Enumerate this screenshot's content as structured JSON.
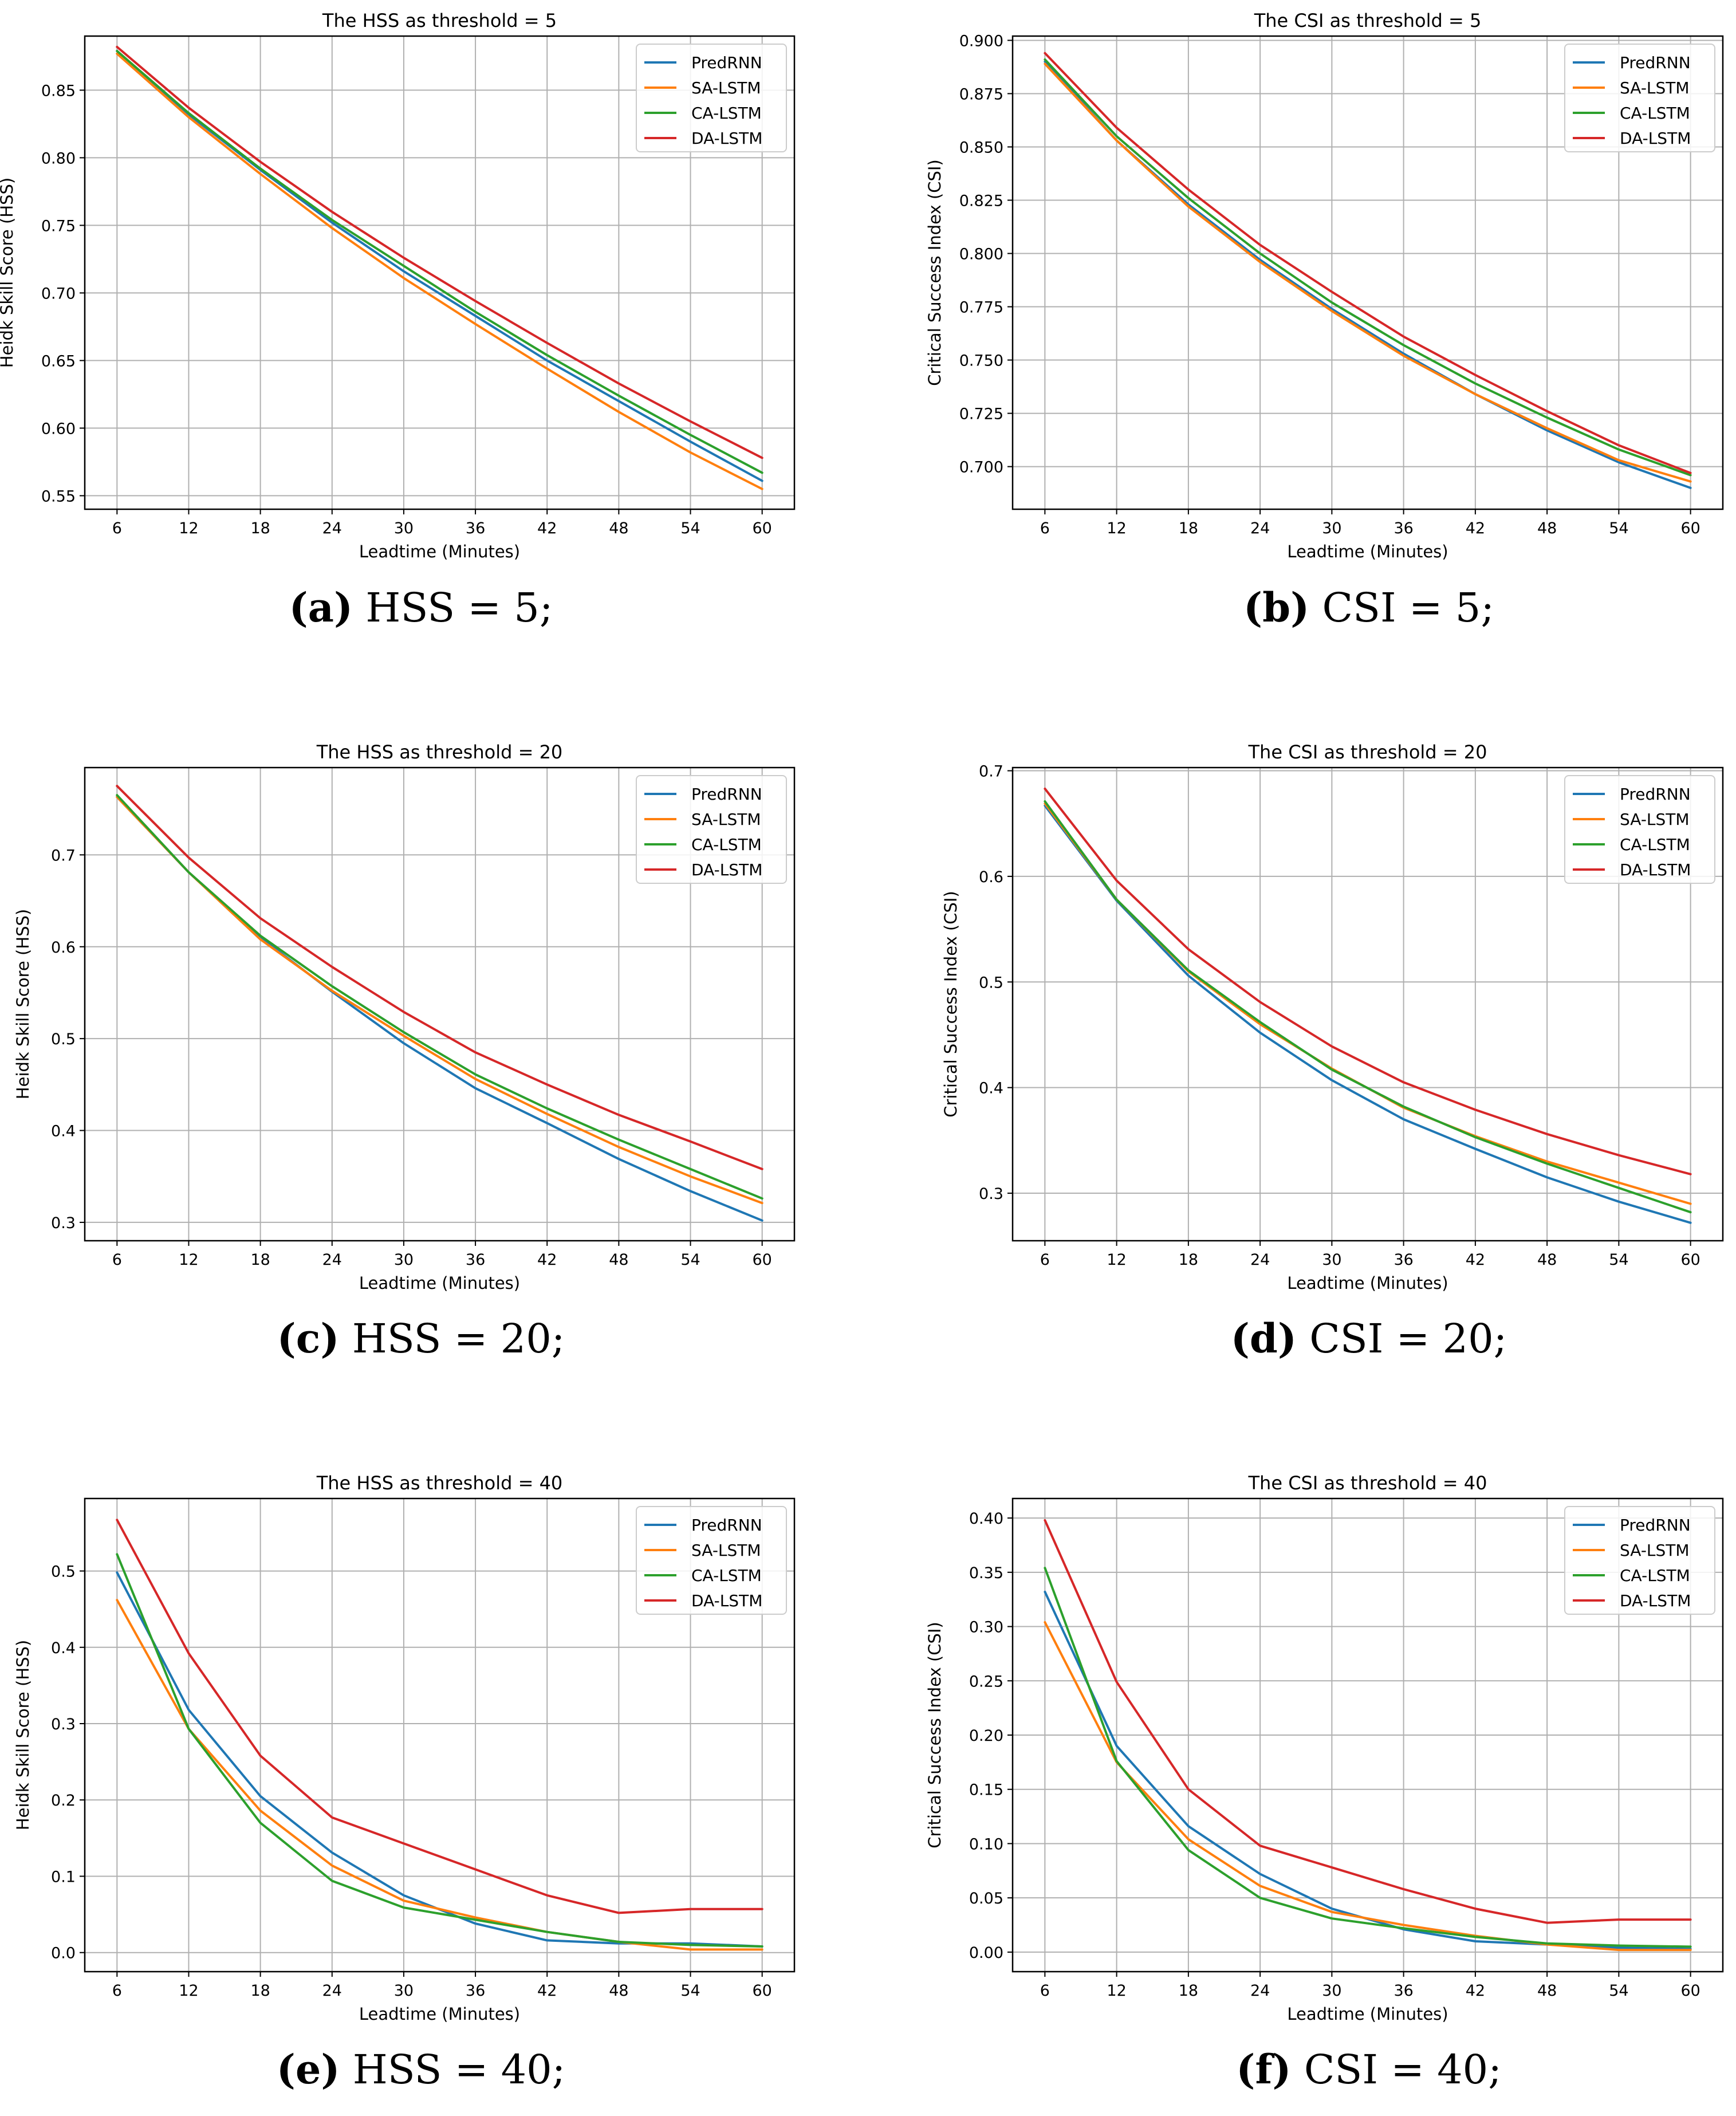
{
  "figure": {
    "series_names": [
      "PredRNN",
      "SA-LSTM",
      "CA-LSTM",
      "DA-LSTM"
    ],
    "series_colors": [
      "#1f77b4",
      "#ff7f0e",
      "#2ca02c",
      "#d62728"
    ]
  },
  "chart_data": [
    {
      "id": "a",
      "type": "line",
      "title": "The HSS as threshold = 5",
      "xlabel": "Leadtime (Minutes)",
      "ylabel": "Heidk Skill Score (HSS)",
      "x": [
        6,
        12,
        18,
        24,
        30,
        36,
        42,
        48,
        54,
        60
      ],
      "xticks": [
        "6",
        "12",
        "18",
        "24",
        "30",
        "36",
        "42",
        "48",
        "54",
        "60"
      ],
      "ylim": [
        0.54,
        0.89
      ],
      "yticks": [
        0.55,
        0.6,
        0.65,
        0.7,
        0.75,
        0.8,
        0.85
      ],
      "ytick_labels": [
        "0.55",
        "0.60",
        "0.65",
        "0.70",
        "0.75",
        "0.80",
        "0.85"
      ],
      "grid": true,
      "legend": "top-right",
      "caption_letter": "(a)",
      "caption_text": " HSS = 5;",
      "series": [
        {
          "name": "PredRNN",
          "values": [
            0.879,
            0.832,
            0.791,
            0.752,
            0.716,
            0.683,
            0.65,
            0.62,
            0.59,
            0.561
          ]
        },
        {
          "name": "SA-LSTM",
          "values": [
            0.877,
            0.83,
            0.788,
            0.748,
            0.711,
            0.677,
            0.644,
            0.612,
            0.582,
            0.555
          ]
        },
        {
          "name": "CA-LSTM",
          "values": [
            0.879,
            0.833,
            0.792,
            0.754,
            0.72,
            0.686,
            0.654,
            0.624,
            0.595,
            0.567
          ]
        },
        {
          "name": "DA-LSTM",
          "values": [
            0.882,
            0.837,
            0.797,
            0.76,
            0.726,
            0.694,
            0.663,
            0.633,
            0.605,
            0.578
          ]
        }
      ]
    },
    {
      "id": "b",
      "type": "line",
      "title": "The CSI as threshold = 5",
      "xlabel": "Leadtime (Minutes)",
      "ylabel": "Critical Success Index (CSI)",
      "x": [
        6,
        12,
        18,
        24,
        30,
        36,
        42,
        48,
        54,
        60
      ],
      "xticks": [
        "6",
        "12",
        "18",
        "24",
        "30",
        "36",
        "42",
        "48",
        "54",
        "60"
      ],
      "ylim": [
        0.68,
        0.902
      ],
      "yticks": [
        0.7,
        0.725,
        0.75,
        0.775,
        0.8,
        0.825,
        0.85,
        0.875,
        0.9
      ],
      "ytick_labels": [
        "0.700",
        "0.725",
        "0.750",
        "0.775",
        "0.800",
        "0.825",
        "0.850",
        "0.875",
        "0.900"
      ],
      "grid": true,
      "legend": "top-right",
      "caption_letter": "(b)",
      "caption_text": " CSI = 5;",
      "series": [
        {
          "name": "PredRNN",
          "values": [
            0.89,
            0.853,
            0.823,
            0.797,
            0.774,
            0.753,
            0.734,
            0.717,
            0.702,
            0.69
          ]
        },
        {
          "name": "SA-LSTM",
          "values": [
            0.889,
            0.853,
            0.822,
            0.796,
            0.773,
            0.752,
            0.734,
            0.718,
            0.703,
            0.693
          ]
        },
        {
          "name": "CA-LSTM",
          "values": [
            0.891,
            0.855,
            0.826,
            0.8,
            0.777,
            0.757,
            0.739,
            0.723,
            0.708,
            0.696
          ]
        },
        {
          "name": "DA-LSTM",
          "values": [
            0.894,
            0.859,
            0.83,
            0.804,
            0.782,
            0.761,
            0.743,
            0.726,
            0.71,
            0.697
          ]
        }
      ]
    },
    {
      "id": "c",
      "type": "line",
      "title": "The HSS as threshold = 20",
      "xlabel": "Leadtime (Minutes)",
      "ylabel": "Heidk Skill Score (HSS)",
      "x": [
        6,
        12,
        18,
        24,
        30,
        36,
        42,
        48,
        54,
        60
      ],
      "xticks": [
        "6",
        "12",
        "18",
        "24",
        "30",
        "36",
        "42",
        "48",
        "54",
        "60"
      ],
      "ylim": [
        0.28,
        0.795
      ],
      "yticks": [
        0.3,
        0.4,
        0.5,
        0.6,
        0.7
      ],
      "ytick_labels": [
        "0.3",
        "0.4",
        "0.5",
        "0.6",
        "0.7"
      ],
      "grid": true,
      "legend": "top-right",
      "caption_letter": "(c)",
      "caption_text": " HSS = 20;",
      "series": [
        {
          "name": "PredRNN",
          "values": [
            0.763,
            0.681,
            0.61,
            0.551,
            0.495,
            0.446,
            0.408,
            0.369,
            0.334,
            0.302
          ]
        },
        {
          "name": "SA-LSTM",
          "values": [
            0.763,
            0.681,
            0.608,
            0.552,
            0.503,
            0.456,
            0.418,
            0.382,
            0.35,
            0.321
          ]
        },
        {
          "name": "CA-LSTM",
          "values": [
            0.765,
            0.681,
            0.612,
            0.557,
            0.507,
            0.461,
            0.424,
            0.39,
            0.358,
            0.326
          ]
        },
        {
          "name": "DA-LSTM",
          "values": [
            0.775,
            0.697,
            0.631,
            0.578,
            0.529,
            0.485,
            0.45,
            0.417,
            0.388,
            0.358
          ]
        }
      ]
    },
    {
      "id": "d",
      "type": "line",
      "title": "The CSI as threshold = 20",
      "xlabel": "Leadtime (Minutes)",
      "ylabel": "Critical Success Index (CSI)",
      "x": [
        6,
        12,
        18,
        24,
        30,
        36,
        42,
        48,
        54,
        60
      ],
      "xticks": [
        "6",
        "12",
        "18",
        "24",
        "30",
        "36",
        "42",
        "48",
        "54",
        "60"
      ],
      "ylim": [
        0.255,
        0.703
      ],
      "yticks": [
        0.3,
        0.4,
        0.5,
        0.6,
        0.7
      ],
      "ytick_labels": [
        "0.3",
        "0.4",
        "0.5",
        "0.6",
        "0.7"
      ],
      "grid": true,
      "legend": "top-right",
      "caption_letter": "(d)",
      "caption_text": " CSI = 20;",
      "series": [
        {
          "name": "PredRNN",
          "values": [
            0.667,
            0.577,
            0.506,
            0.452,
            0.407,
            0.37,
            0.342,
            0.315,
            0.292,
            0.272
          ]
        },
        {
          "name": "SA-LSTM",
          "values": [
            0.669,
            0.578,
            0.51,
            0.46,
            0.418,
            0.381,
            0.354,
            0.33,
            0.31,
            0.29
          ]
        },
        {
          "name": "CA-LSTM",
          "values": [
            0.671,
            0.578,
            0.511,
            0.462,
            0.417,
            0.382,
            0.353,
            0.328,
            0.305,
            0.282
          ]
        },
        {
          "name": "DA-LSTM",
          "values": [
            0.683,
            0.596,
            0.531,
            0.481,
            0.439,
            0.405,
            0.379,
            0.356,
            0.336,
            0.318
          ]
        }
      ]
    },
    {
      "id": "e",
      "type": "line",
      "title": "The HSS as threshold = 40",
      "xlabel": "Leadtime (Minutes)",
      "ylabel": "Heidk Skill Score (HSS)",
      "x": [
        6,
        12,
        18,
        24,
        30,
        36,
        42,
        48,
        54,
        60
      ],
      "xticks": [
        "6",
        "12",
        "18",
        "24",
        "30",
        "36",
        "42",
        "48",
        "54",
        "60"
      ],
      "ylim": [
        -0.025,
        0.595
      ],
      "yticks": [
        0.0,
        0.1,
        0.2,
        0.3,
        0.4,
        0.5
      ],
      "ytick_labels": [
        "0.0",
        "0.1",
        "0.2",
        "0.3",
        "0.4",
        "0.5"
      ],
      "grid": true,
      "legend": "top-right",
      "caption_letter": "(e)",
      "caption_text": " HSS = 40;",
      "series": [
        {
          "name": "PredRNN",
          "values": [
            0.498,
            0.318,
            0.205,
            0.131,
            0.075,
            0.038,
            0.016,
            0.012,
            0.012,
            0.008
          ]
        },
        {
          "name": "SA-LSTM",
          "values": [
            0.462,
            0.293,
            0.186,
            0.114,
            0.068,
            0.046,
            0.027,
            0.014,
            0.004,
            0.004
          ]
        },
        {
          "name": "CA-LSTM",
          "values": [
            0.522,
            0.293,
            0.17,
            0.094,
            0.059,
            0.043,
            0.027,
            0.014,
            0.01,
            0.008
          ]
        },
        {
          "name": "DA-LSTM",
          "values": [
            0.567,
            0.392,
            0.258,
            0.177,
            0.143,
            0.109,
            0.075,
            0.052,
            0.057,
            0.057
          ]
        }
      ]
    },
    {
      "id": "f",
      "type": "line",
      "title": "The CSI as threshold = 40",
      "xlabel": "Leadtime (Minutes)",
      "ylabel": "Critical Success Index (CSI)",
      "x": [
        6,
        12,
        18,
        24,
        30,
        36,
        42,
        48,
        54,
        60
      ],
      "xticks": [
        "6",
        "12",
        "18",
        "24",
        "30",
        "36",
        "42",
        "48",
        "54",
        "60"
      ],
      "ylim": [
        -0.018,
        0.418
      ],
      "yticks": [
        0.0,
        0.05,
        0.1,
        0.15,
        0.2,
        0.25,
        0.3,
        0.35,
        0.4
      ],
      "ytick_labels": [
        "0.00",
        "0.05",
        "0.10",
        "0.15",
        "0.20",
        "0.25",
        "0.30",
        "0.35",
        "0.40"
      ],
      "grid": true,
      "legend": "top-right",
      "caption_letter": "(f)",
      "caption_text": " CSI = 40;",
      "series": [
        {
          "name": "PredRNN",
          "values": [
            0.332,
            0.19,
            0.116,
            0.072,
            0.04,
            0.021,
            0.01,
            0.007,
            0.004,
            0.003
          ]
        },
        {
          "name": "SA-LSTM",
          "values": [
            0.304,
            0.175,
            0.104,
            0.061,
            0.037,
            0.025,
            0.015,
            0.007,
            0.002,
            0.002
          ]
        },
        {
          "name": "CA-LSTM",
          "values": [
            0.354,
            0.176,
            0.094,
            0.05,
            0.031,
            0.022,
            0.014,
            0.008,
            0.006,
            0.005
          ]
        },
        {
          "name": "DA-LSTM",
          "values": [
            0.398,
            0.249,
            0.15,
            0.098,
            0.078,
            0.058,
            0.04,
            0.027,
            0.03,
            0.03
          ]
        }
      ]
    }
  ]
}
